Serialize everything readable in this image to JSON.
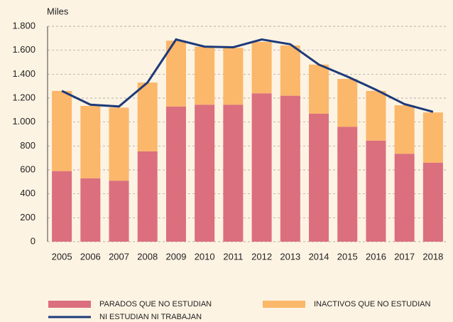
{
  "chart_data": {
    "type": "bar",
    "stacked": true,
    "y_label": "Miles",
    "categories": [
      "2005",
      "2006",
      "2007",
      "2008",
      "2009",
      "2010",
      "2011",
      "2012",
      "2013",
      "2014",
      "2015",
      "2016",
      "2017",
      "2018"
    ],
    "series": [
      {
        "name": "PARADOS QUE NO ESTUDIAN",
        "type": "bar",
        "color": "#db6f7e",
        "values": [
          590,
          530,
          510,
          755,
          1130,
          1145,
          1145,
          1240,
          1220,
          1070,
          960,
          845,
          735,
          660
        ]
      },
      {
        "name": "INACTIVOS QUE NO ESTUDIAN",
        "type": "bar",
        "color": "#fbb76a",
        "values": [
          670,
          605,
          610,
          575,
          550,
          485,
          475,
          430,
          420,
          410,
          400,
          415,
          405,
          420
        ]
      },
      {
        "name": "NI ESTUDIAN NI TRABAJAN",
        "type": "line",
        "color": "#1d3a7a",
        "values": [
          1260,
          1145,
          1130,
          1330,
          1690,
          1630,
          1625,
          1690,
          1650,
          1480,
          1380,
          1270,
          1150,
          1085
        ]
      }
    ],
    "ylim": [
      0,
      1800
    ],
    "yticks": [
      0,
      200,
      400,
      600,
      800,
      {
        "value": 1000,
        "label": "1.000"
      },
      {
        "value": 1200,
        "label": "1.200"
      },
      {
        "value": 1400,
        "label": "1.400"
      },
      {
        "value": 1600,
        "label": "1.600"
      },
      {
        "value": 1800,
        "label": "1.800"
      }
    ],
    "grid": true
  }
}
